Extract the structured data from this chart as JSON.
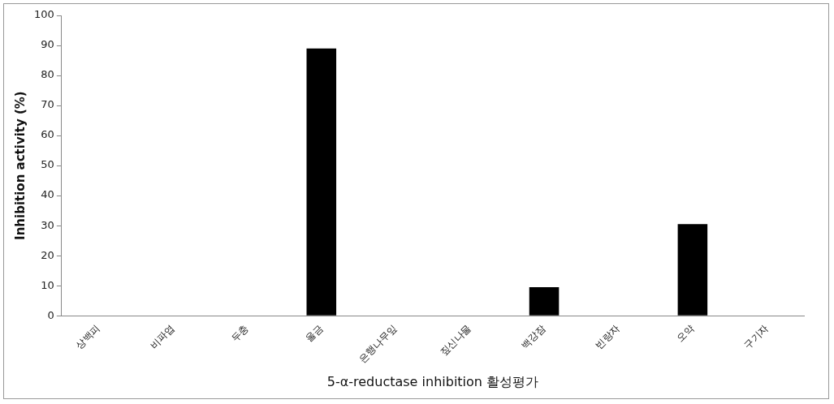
{
  "chart_data": {
    "type": "bar",
    "xlabel": "5-α-reductase inhibition 활성평가",
    "ylabel": "Inhibition activity (%)",
    "categories": [
      "상백피",
      "비파엽",
      "두충",
      "울금",
      "은행나무잎",
      "짚신나물",
      "백강잠",
      "빈랑자",
      "오약",
      "구기자"
    ],
    "values": [
      0,
      0,
      0,
      89,
      0,
      0,
      9.5,
      0,
      30.5,
      0
    ],
    "color": "#000000",
    "ylim": [
      0,
      100
    ],
    "yticks": [
      0,
      10,
      20,
      30,
      40,
      50,
      60,
      70,
      80,
      90,
      100
    ],
    "grid": false,
    "legend": false
  }
}
